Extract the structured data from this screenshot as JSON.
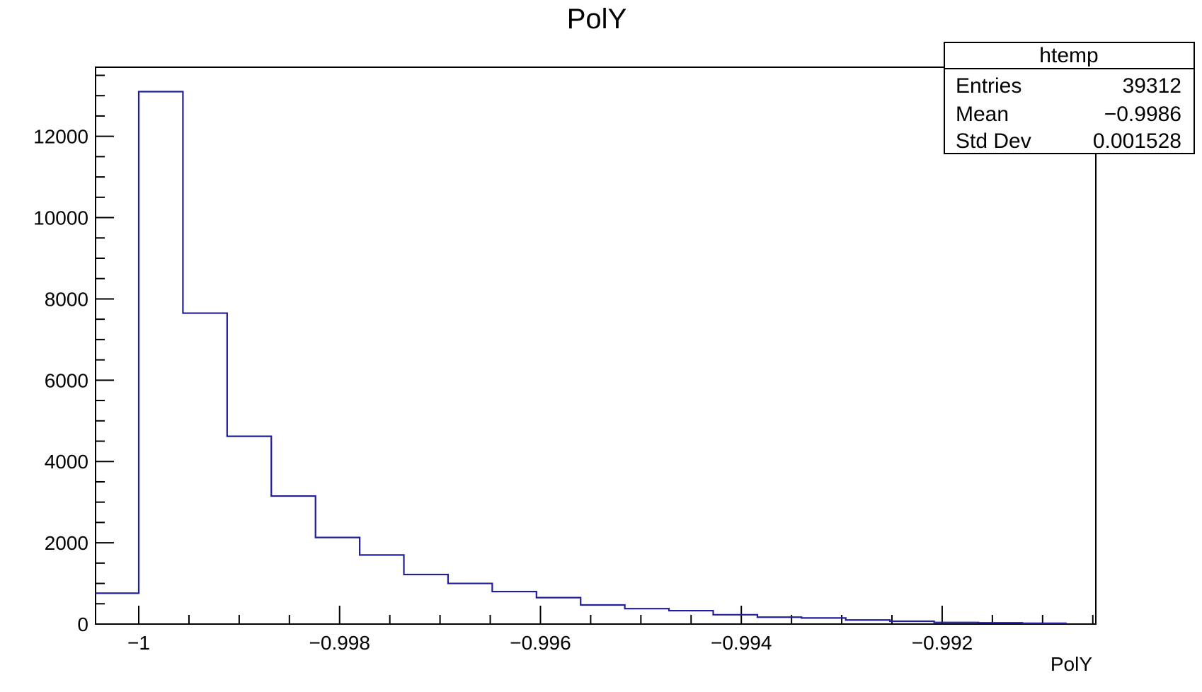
{
  "chart_data": {
    "type": "histogram",
    "title": "PolY",
    "xlabel": "PolY",
    "ylabel": "",
    "xlim": [
      -1.00043,
      -0.99047
    ],
    "ylim": [
      0,
      13700
    ],
    "x_ticks": [
      -1,
      -0.998,
      -0.996,
      -0.994,
      -0.992
    ],
    "x_tick_labels": [
      "−1",
      "−0.998",
      "−0.996",
      "−0.994",
      "−0.992"
    ],
    "y_ticks": [
      0,
      2000,
      4000,
      6000,
      8000,
      10000,
      12000
    ],
    "y_tick_labels": [
      "0",
      "2000",
      "4000",
      "6000",
      "8000",
      "10000",
      "12000"
    ],
    "bin_edges": [
      -1.00043,
      -1.0,
      -0.99956,
      -0.99912,
      -0.99868,
      -0.99824,
      -0.9978,
      -0.99736,
      -0.99692,
      -0.99648,
      -0.99604,
      -0.9956,
      -0.99516,
      -0.99472,
      -0.99428,
      -0.99384,
      -0.9934,
      -0.99296,
      -0.99252,
      -0.99208,
      -0.99164,
      -0.9912,
      -0.99076
    ],
    "counts": [
      760,
      13100,
      7650,
      4620,
      3150,
      2130,
      1700,
      1220,
      1000,
      800,
      650,
      470,
      380,
      330,
      230,
      170,
      150,
      100,
      70,
      40,
      30,
      20
    ],
    "line_color": "#1f1f9e",
    "grid": false,
    "stats_box": {
      "title": "htemp",
      "rows": [
        {
          "label": "Entries",
          "value": "39312"
        },
        {
          "label": "Mean",
          "value": "−0.9986"
        },
        {
          "label": "Std Dev",
          "value": "0.001528"
        }
      ],
      "placement": "top-right"
    }
  }
}
